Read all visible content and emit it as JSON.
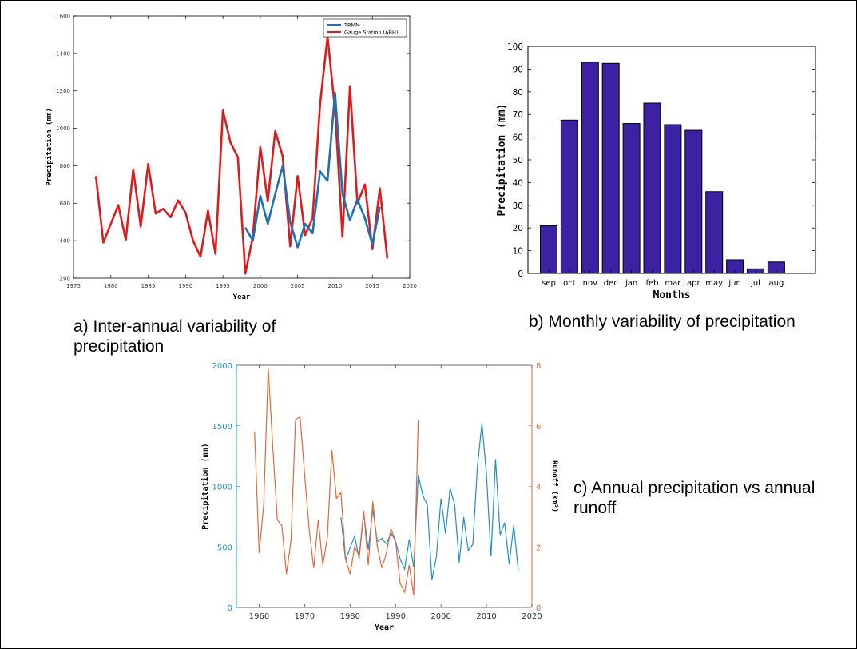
{
  "captions": {
    "a": "a) Inter-annual variability of precipitation",
    "b": "b) Monthly variability of precipitation",
    "c": "c) Annual precipitation vs annual runoff"
  },
  "chart_data": [
    {
      "id": "a",
      "type": "line",
      "xlabel": "Year",
      "ylabel": "Precipitation (mm)",
      "xlim": [
        1975,
        2020
      ],
      "ylim": [
        200,
        1600
      ],
      "xticks": [
        1975,
        1980,
        1985,
        1990,
        1995,
        2000,
        2005,
        2010,
        2015,
        2020
      ],
      "yticks": [
        200,
        400,
        600,
        800,
        1000,
        1200,
        1400,
        1600
      ],
      "legend_position": "top-right",
      "series": [
        {
          "name": "TRMM",
          "color": "#1f6fb4",
          "x": [
            1998,
            1999,
            2000,
            2001,
            2002,
            2003,
            2004,
            2005,
            2006,
            2007,
            2008,
            2009,
            2010,
            2011,
            2012,
            2013,
            2014,
            2015,
            2016
          ],
          "values": [
            470,
            400,
            640,
            490,
            650,
            800,
            500,
            365,
            490,
            440,
            770,
            720,
            1190,
            650,
            510,
            620,
            520,
            380,
            580
          ]
        },
        {
          "name": "Gauge Station (ABH)",
          "color": "#dc1c1c",
          "x": [
            1978,
            1979,
            1980,
            1981,
            1982,
            1983,
            1984,
            1985,
            1986,
            1987,
            1988,
            1989,
            1990,
            1991,
            1992,
            1993,
            1994,
            1995,
            1996,
            1997,
            1998,
            1999,
            2000,
            2001,
            2002,
            2003,
            2004,
            2005,
            2006,
            2007,
            2008,
            2009,
            2010,
            2011,
            2012,
            2013,
            2014,
            2015,
            2016,
            2017
          ],
          "values": [
            745,
            390,
            490,
            590,
            405,
            780,
            475,
            810,
            545,
            570,
            525,
            615,
            550,
            400,
            315,
            560,
            330,
            1095,
            925,
            845,
            225,
            420,
            900,
            610,
            985,
            850,
            370,
            745,
            430,
            520,
            1130,
            1490,
            1100,
            420,
            1225,
            600,
            700,
            355,
            680,
            305
          ]
        }
      ]
    },
    {
      "id": "b",
      "type": "bar",
      "xlabel": "Months",
      "ylabel": "Precipitation (mm)",
      "ylim": [
        0,
        100
      ],
      "yticks": [
        0,
        10,
        20,
        30,
        40,
        50,
        60,
        70,
        80,
        90,
        100
      ],
      "categories": [
        "sep",
        "oct",
        "nov",
        "dec",
        "jan",
        "feb",
        "mar",
        "apr",
        "may",
        "jun",
        "jul",
        "aug"
      ],
      "values": [
        21,
        67.5,
        93,
        92.5,
        66,
        75,
        65.5,
        63,
        36,
        6,
        2,
        5
      ],
      "color": "#3a22a3"
    },
    {
      "id": "c",
      "type": "line",
      "xlabel": "Year",
      "ylabel": "Precipitation (mm)",
      "y2label": "Runoff (km³)",
      "xlim": [
        1955,
        2020
      ],
      "ylim": [
        0,
        2000
      ],
      "y2lim": [
        0,
        8
      ],
      "xticks": [
        1960,
        1970,
        1980,
        1990,
        2000,
        2010,
        2020
      ],
      "yticks": [
        0,
        500,
        1000,
        1500,
        2000
      ],
      "y2ticks": [
        0,
        2,
        4,
        6,
        8
      ],
      "series": [
        {
          "name": "Precipitation",
          "axis": "left",
          "color": "#1f8fc8",
          "x": [
            1978,
            1979,
            1980,
            1981,
            1982,
            1983,
            1984,
            1985,
            1986,
            1987,
            1988,
            1989,
            1990,
            1991,
            1992,
            1993,
            1994,
            1995,
            1996,
            1997,
            1998,
            1999,
            2000,
            2001,
            2002,
            2003,
            2004,
            2005,
            2006,
            2007,
            2008,
            2009,
            2010,
            2011,
            2012,
            2013,
            2014,
            2015,
            2016,
            2017
          ],
          "values": [
            745,
            390,
            490,
            590,
            405,
            780,
            475,
            810,
            545,
            570,
            525,
            615,
            550,
            400,
            315,
            560,
            330,
            1095,
            925,
            845,
            225,
            420,
            900,
            610,
            985,
            850,
            370,
            745,
            470,
            520,
            1160,
            1520,
            1100,
            420,
            1225,
            600,
            700,
            355,
            680,
            305
          ]
        },
        {
          "name": "Runoff",
          "axis": "right",
          "color": "#e0693a",
          "x": [
            1959,
            1960,
            1961,
            1962,
            1963,
            1964,
            1965,
            1966,
            1967,
            1968,
            1969,
            1970,
            1971,
            1972,
            1973,
            1974,
            1975,
            1976,
            1977,
            1978,
            1979,
            1980,
            1981,
            1982,
            1983,
            1984,
            1985,
            1986,
            1987,
            1988,
            1989,
            1990,
            1991,
            1992,
            1993,
            1994,
            1995
          ],
          "values": [
            5.8,
            1.8,
            3.4,
            7.9,
            5.3,
            2.9,
            2.7,
            1.1,
            2.2,
            6.2,
            6.3,
            4.4,
            2.6,
            1.3,
            2.9,
            1.4,
            2.3,
            5.2,
            3.6,
            3.8,
            1.6,
            1.1,
            2.0,
            1.7,
            3.2,
            1.4,
            3.5,
            2.0,
            1.3,
            1.8,
            2.6,
            2.2,
            0.8,
            0.5,
            1.4,
            0.4,
            6.2
          ]
        }
      ]
    }
  ]
}
